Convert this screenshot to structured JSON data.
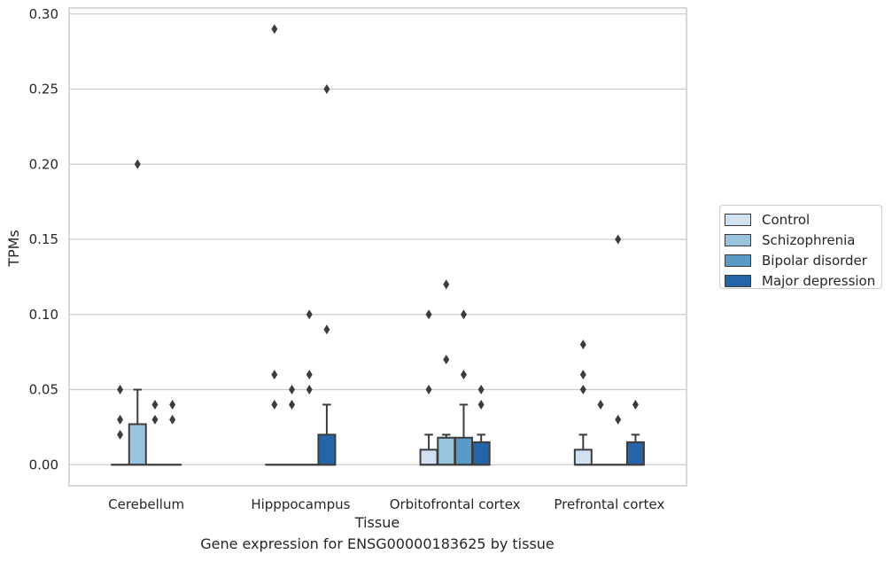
{
  "caption": "Gene expression for ENSG00000183625 by tissue",
  "chart_data": {
    "type": "box",
    "xlabel": "Tissue",
    "ylabel": "TPMs",
    "ylim": [
      -0.014,
      0.304
    ],
    "yticks": [
      "0.00",
      "0.05",
      "0.10",
      "0.15",
      "0.20",
      "0.25",
      "0.30"
    ],
    "ytick_values": [
      0,
      0.05,
      0.1,
      0.15,
      0.2,
      0.25,
      0.3
    ],
    "grid": "horizontal",
    "legend_position": "right",
    "categories": [
      "Cerebellum",
      "Hipppocampus",
      "Orbitofrontal cortex",
      "Prefrontal cortex"
    ],
    "series": [
      {
        "name": "Control",
        "color": "#d0e1f2",
        "boxes": [
          {
            "q1": 0,
            "median": 0,
            "q3": 0,
            "whisker_low": 0,
            "whisker_high": 0,
            "outliers": [
              0.02,
              0.03,
              0.05
            ]
          },
          {
            "q1": 0,
            "median": 0,
            "q3": 0,
            "whisker_low": 0,
            "whisker_high": 0,
            "outliers": [
              0.04,
              0.06,
              0.29
            ]
          },
          {
            "q1": 0,
            "median": 0,
            "q3": 0.01,
            "whisker_low": 0,
            "whisker_high": 0.02,
            "outliers": [
              0.05,
              0.1
            ]
          },
          {
            "q1": 0,
            "median": 0,
            "q3": 0.01,
            "whisker_low": 0,
            "whisker_high": 0.02,
            "outliers": [
              0.05,
              0.06,
              0.08
            ]
          }
        ]
      },
      {
        "name": "Schizophrenia",
        "color": "#9ac3de",
        "boxes": [
          {
            "q1": 0,
            "median": 0,
            "q3": 0.027,
            "whisker_low": 0,
            "whisker_high": 0.05,
            "outliers": [
              0.2
            ]
          },
          {
            "q1": 0,
            "median": 0,
            "q3": 0,
            "whisker_low": 0,
            "whisker_high": 0,
            "outliers": [
              0.04,
              0.05
            ]
          },
          {
            "q1": 0,
            "median": 0,
            "q3": 0.018,
            "whisker_low": 0,
            "whisker_high": 0.02,
            "outliers": [
              0.07,
              0.12
            ]
          },
          {
            "q1": 0,
            "median": 0,
            "q3": 0,
            "whisker_low": 0,
            "whisker_high": 0,
            "outliers": [
              0.04
            ]
          }
        ]
      },
      {
        "name": "Bipolar disorder",
        "color": "#5a9ac7",
        "boxes": [
          {
            "q1": 0,
            "median": 0,
            "q3": 0,
            "whisker_low": 0,
            "whisker_high": 0,
            "outliers": [
              0.03,
              0.04
            ]
          },
          {
            "q1": 0,
            "median": 0,
            "q3": 0,
            "whisker_low": 0,
            "whisker_high": 0,
            "outliers": [
              0.05,
              0.06,
              0.1
            ]
          },
          {
            "q1": 0,
            "median": 0,
            "q3": 0.018,
            "whisker_low": 0,
            "whisker_high": 0.04,
            "outliers": [
              0.06,
              0.1
            ]
          },
          {
            "q1": 0,
            "median": 0,
            "q3": 0,
            "whisker_low": 0,
            "whisker_high": 0,
            "outliers": [
              0.03,
              0.15
            ]
          }
        ]
      },
      {
        "name": "Major depression",
        "color": "#2465a8",
        "boxes": [
          {
            "q1": 0,
            "median": 0,
            "q3": 0,
            "whisker_low": 0,
            "whisker_high": 0,
            "outliers": [
              0.03,
              0.04
            ]
          },
          {
            "q1": 0,
            "median": 0,
            "q3": 0.02,
            "whisker_low": 0,
            "whisker_high": 0.04,
            "outliers": [
              0.09,
              0.25
            ]
          },
          {
            "q1": 0,
            "median": 0,
            "q3": 0.015,
            "whisker_low": 0,
            "whisker_high": 0.02,
            "outliers": [
              0.04,
              0.05
            ]
          },
          {
            "q1": 0,
            "median": 0,
            "q3": 0.015,
            "whisker_low": 0,
            "whisker_high": 0.02,
            "outliers": [
              0.04
            ]
          }
        ]
      }
    ]
  }
}
